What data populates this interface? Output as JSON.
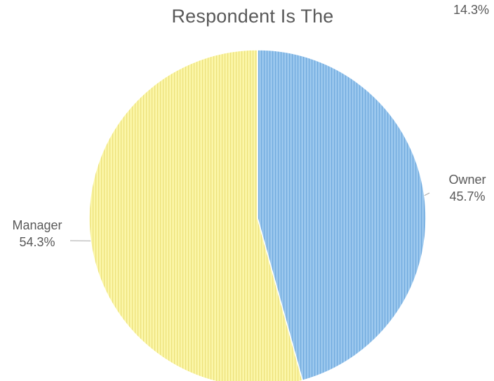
{
  "chart_data": {
    "type": "pie",
    "title": "Respondent Is The",
    "corner_note": "14.3%",
    "slices": [
      {
        "label": "Owner",
        "value": 45.7,
        "value_label": "45.7%",
        "color": "#9cc8ee",
        "stripe": "#6fa9de"
      },
      {
        "label": "Manager",
        "value": 54.3,
        "value_label": "54.3%",
        "color": "#fbf6a8",
        "stripe": "#ece07a"
      }
    ],
    "start": "12 o'clock",
    "direction": "clockwise",
    "legend": "none",
    "label_color": "#595959",
    "leader_line_color": "#a6a6a6"
  }
}
